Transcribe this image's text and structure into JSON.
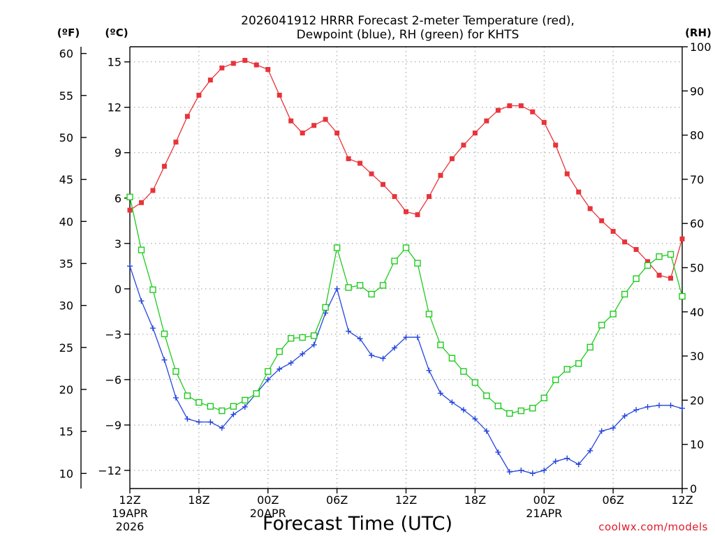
{
  "chart_data": {
    "type": "line",
    "title_line1": "2026041912 HRRR Forecast 2-meter Temperature (red),",
    "title_line2": "Dewpoint (blue), RH (green) for KHTS",
    "xlabel": "Forecast Time (UTC)",
    "credit": "coolwx.com/models",
    "unit_f": "(ºF)",
    "unit_c": "(ºC)",
    "unit_rh": "(RH)",
    "x_hours": [
      0,
      1,
      2,
      3,
      4,
      5,
      6,
      7,
      8,
      9,
      10,
      11,
      12,
      13,
      14,
      15,
      16,
      17,
      18,
      19,
      20,
      21,
      22,
      23,
      24,
      25,
      26,
      27,
      28,
      29,
      30,
      31,
      32,
      33,
      34,
      35,
      36,
      37,
      38,
      39,
      40,
      41,
      42,
      43,
      44,
      45,
      46,
      47,
      48
    ],
    "x_ticks": [
      {
        "hour": 0,
        "label": "12Z",
        "date": "19APR",
        "year": "2026"
      },
      {
        "hour": 6,
        "label": "18Z",
        "date": "",
        "year": ""
      },
      {
        "hour": 12,
        "label": "00Z",
        "date": "20APR",
        "year": ""
      },
      {
        "hour": 18,
        "label": "06Z",
        "date": "",
        "year": ""
      },
      {
        "hour": 24,
        "label": "12Z",
        "date": "",
        "year": ""
      },
      {
        "hour": 30,
        "label": "18Z",
        "date": "",
        "year": ""
      },
      {
        "hour": 36,
        "label": "00Z",
        "date": "21APR",
        "year": ""
      },
      {
        "hour": 42,
        "label": "06Z",
        "date": "",
        "year": ""
      },
      {
        "hour": 48,
        "label": "12Z",
        "date": "",
        "year": ""
      }
    ],
    "y_c_ticks": [
      "15",
      "12",
      "9",
      "6",
      "3",
      "0",
      "−3",
      "−6",
      "−9",
      "−12"
    ],
    "y_f_ticks": [
      "60",
      "55",
      "50",
      "45",
      "40",
      "35",
      "30",
      "25",
      "20",
      "15",
      "10"
    ],
    "y_rh_ticks": [
      "100",
      "90",
      "80",
      "70",
      "60",
      "50",
      "40",
      "30",
      "20",
      "10",
      "0"
    ],
    "y_c_range": [
      -13.2,
      16.0
    ],
    "y_f_range": [
      8.2,
      60.8
    ],
    "y_rh_range": [
      0,
      100
    ],
    "grid": true,
    "series": [
      {
        "name": "Temperature (red)",
        "axis": "celsius",
        "color": "#e8333a",
        "marker": "filled-square",
        "values": [
          5.2,
          5.7,
          6.5,
          8.1,
          9.7,
          11.4,
          12.8,
          13.8,
          14.6,
          14.9,
          15.1,
          14.8,
          14.5,
          12.8,
          11.1,
          10.3,
          10.8,
          11.2,
          10.3,
          8.6,
          8.3,
          7.6,
          6.9,
          6.1,
          5.1,
          4.9,
          6.1,
          7.5,
          8.6,
          9.5,
          10.3,
          11.1,
          11.8,
          12.1,
          12.1,
          11.7,
          11.0,
          9.5,
          7.6,
          6.4,
          5.3,
          4.5,
          3.8,
          3.1,
          2.6,
          1.8,
          0.9,
          0.7,
          3.3
        ]
      },
      {
        "name": "Dewpoint (blue)",
        "axis": "celsius",
        "color": "#2244dd",
        "marker": "plus",
        "values": [
          1.5,
          -0.8,
          -2.6,
          -4.7,
          -7.2,
          -8.6,
          -8.8,
          -8.8,
          -9.2,
          -8.3,
          -7.8,
          -6.9,
          -6.0,
          -5.3,
          -4.9,
          -4.3,
          -3.7,
          -1.6,
          0.0,
          -2.8,
          -3.3,
          -4.4,
          -4.6,
          -3.9,
          -3.2,
          -3.2,
          -5.4,
          -6.9,
          -7.5,
          -8.0,
          -8.6,
          -9.4,
          -10.8,
          -12.1,
          -12.0,
          -12.2,
          -12.0,
          -11.4,
          -11.2,
          -11.6,
          -10.7,
          -9.4,
          -9.2,
          -8.4,
          -8.0,
          -7.8,
          -7.7,
          -7.7,
          -7.9
        ]
      },
      {
        "name": "RH (green)",
        "axis": "rh",
        "color": "#1ecb1e",
        "marker": "open-square",
        "values": [
          66,
          54,
          45,
          35,
          26.5,
          21,
          19.5,
          18.6,
          17.6,
          18.6,
          20,
          21.5,
          26.5,
          31,
          34,
          34.2,
          34.6,
          41,
          54.5,
          45.5,
          46,
          44,
          46,
          51.5,
          54.5,
          51,
          39.5,
          32.5,
          29.5,
          26.5,
          24,
          21,
          18.7,
          17,
          17.6,
          18.2,
          20.5,
          24.6,
          27,
          28.3,
          32,
          37,
          39.5,
          44,
          47.5,
          50.5,
          52.5,
          53,
          43.5
        ]
      }
    ]
  }
}
